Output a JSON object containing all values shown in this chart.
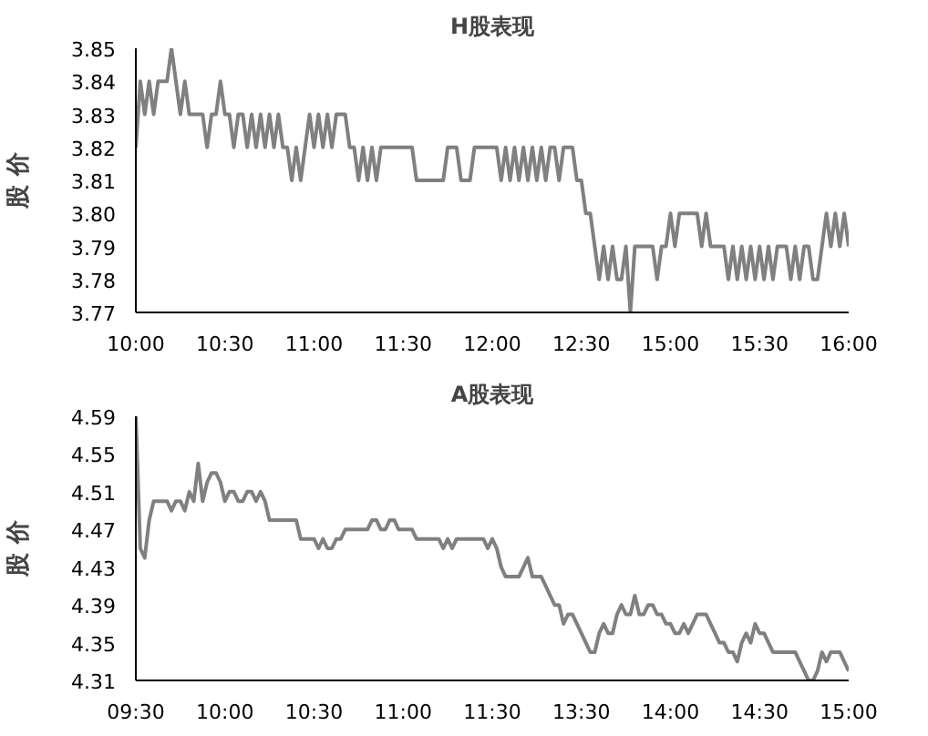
{
  "chart_data": [
    {
      "type": "line",
      "title": "H股表现",
      "ylabel": "股 价",
      "categories": [
        "10:00",
        null,
        null,
        null,
        null,
        null,
        null,
        null,
        null,
        null,
        null,
        null,
        null,
        null,
        null,
        null,
        null,
        null,
        null,
        null,
        "10:30",
        null,
        null,
        null,
        null,
        null,
        null,
        null,
        null,
        null,
        null,
        null,
        null,
        null,
        null,
        null,
        null,
        null,
        null,
        null,
        "11:00",
        null,
        null,
        null,
        null,
        null,
        null,
        null,
        null,
        null,
        null,
        null,
        null,
        null,
        null,
        null,
        null,
        null,
        null,
        null,
        "11:30",
        null,
        null,
        null,
        null,
        null,
        null,
        null,
        null,
        null,
        null,
        null,
        null,
        null,
        null,
        null,
        null,
        null,
        null,
        null,
        "12:00",
        null,
        null,
        null,
        null,
        null,
        null,
        null,
        null,
        null,
        null,
        null,
        null,
        null,
        null,
        null,
        null,
        null,
        null,
        null,
        "12:30",
        null,
        null,
        null,
        null,
        null,
        null,
        null,
        null,
        null,
        null,
        null,
        null,
        null,
        null,
        null,
        null,
        null,
        null,
        null,
        "15:00",
        null,
        null,
        null,
        null,
        null,
        null,
        null,
        null,
        null,
        null,
        null,
        null,
        null,
        null,
        null,
        null,
        null,
        null,
        null,
        "15:30",
        null,
        null,
        null,
        null,
        null,
        null,
        null,
        null,
        null,
        null,
        null,
        null,
        null,
        null,
        null,
        null,
        null,
        null,
        null,
        "16:00"
      ],
      "ylim": [
        3.77,
        3.85
      ],
      "yticks": [
        3.77,
        3.78,
        3.79,
        {
          "value": 3.8,
          "label": "3.80"
        },
        3.81,
        3.82,
        3.83,
        3.84,
        3.85
      ],
      "series": [
        {
          "color": "#808080",
          "values": [
            3.82,
            3.84,
            3.83,
            3.84,
            3.83,
            3.84,
            3.84,
            3.84,
            3.85,
            3.84,
            3.83,
            3.84,
            3.83,
            3.83,
            3.83,
            3.83,
            3.82,
            3.83,
            3.83,
            3.84,
            3.83,
            3.83,
            3.82,
            3.83,
            3.83,
            3.82,
            3.83,
            3.82,
            3.83,
            3.82,
            3.83,
            3.82,
            3.83,
            3.82,
            3.82,
            3.81,
            3.82,
            3.81,
            3.82,
            3.83,
            3.82,
            3.83,
            3.82,
            3.83,
            3.82,
            3.83,
            3.83,
            3.83,
            3.82,
            3.82,
            3.81,
            3.82,
            3.81,
            3.82,
            3.81,
            3.82,
            3.82,
            3.82,
            3.82,
            3.82,
            3.82,
            3.82,
            3.82,
            3.81,
            3.81,
            3.81,
            3.81,
            3.81,
            3.81,
            3.81,
            3.82,
            3.82,
            3.82,
            3.81,
            3.81,
            3.81,
            3.82,
            3.82,
            3.82,
            3.82,
            3.82,
            3.82,
            3.81,
            3.82,
            3.81,
            3.82,
            3.81,
            3.82,
            3.81,
            3.82,
            3.81,
            3.82,
            3.81,
            3.82,
            3.82,
            3.81,
            3.82,
            3.82,
            3.82,
            3.81,
            3.81,
            3.8,
            3.8,
            3.79,
            3.78,
            3.79,
            3.78,
            3.79,
            3.78,
            3.78,
            3.79,
            3.77,
            3.79,
            3.79,
            3.79,
            3.79,
            3.79,
            3.78,
            3.79,
            3.79,
            3.8,
            3.79,
            3.8,
            3.8,
            3.8,
            3.8,
            3.8,
            3.79,
            3.8,
            3.79,
            3.79,
            3.79,
            3.79,
            3.78,
            3.79,
            3.78,
            3.79,
            3.78,
            3.79,
            3.78,
            3.79,
            3.78,
            3.79,
            3.78,
            3.79,
            3.79,
            3.79,
            3.78,
            3.79,
            3.78,
            3.79,
            3.79,
            3.78,
            3.78,
            3.79,
            3.8,
            3.79,
            3.8,
            3.79,
            3.8,
            3.79
          ]
        }
      ]
    },
    {
      "type": "line",
      "title": "A股表现",
      "ylabel": "股 价",
      "categories": [
        "09:30",
        null,
        null,
        null,
        null,
        null,
        null,
        null,
        null,
        null,
        null,
        null,
        null,
        null,
        null,
        null,
        null,
        null,
        null,
        null,
        "10:00",
        null,
        null,
        null,
        null,
        null,
        null,
        null,
        null,
        null,
        null,
        null,
        null,
        null,
        null,
        null,
        null,
        null,
        null,
        null,
        "10:30",
        null,
        null,
        null,
        null,
        null,
        null,
        null,
        null,
        null,
        null,
        null,
        null,
        null,
        null,
        null,
        null,
        null,
        null,
        null,
        "11:00",
        null,
        null,
        null,
        null,
        null,
        null,
        null,
        null,
        null,
        null,
        null,
        null,
        null,
        null,
        null,
        null,
        null,
        null,
        null,
        "11:30",
        null,
        null,
        null,
        null,
        null,
        null,
        null,
        null,
        null,
        null,
        null,
        null,
        null,
        null,
        null,
        null,
        null,
        null,
        null,
        "13:30",
        null,
        null,
        null,
        null,
        null,
        null,
        null,
        null,
        null,
        null,
        null,
        null,
        null,
        null,
        null,
        null,
        null,
        null,
        null,
        "14:00",
        null,
        null,
        null,
        null,
        null,
        null,
        null,
        null,
        null,
        null,
        null,
        null,
        null,
        null,
        null,
        null,
        null,
        null,
        null,
        "14:30",
        null,
        null,
        null,
        null,
        null,
        null,
        null,
        null,
        null,
        null,
        null,
        null,
        null,
        null,
        null,
        null,
        null,
        null,
        null,
        "15:00"
      ],
      "ylim": [
        4.31,
        4.59
      ],
      "yticks": [
        4.31,
        4.35,
        4.39,
        4.43,
        4.47,
        4.51,
        4.55,
        4.59
      ],
      "series": [
        {
          "color": "#808080",
          "values": [
            4.59,
            4.45,
            4.44,
            4.48,
            4.5,
            4.5,
            4.5,
            4.5,
            4.49,
            4.5,
            4.5,
            4.49,
            4.51,
            4.5,
            4.54,
            4.5,
            4.52,
            4.53,
            4.53,
            4.52,
            4.5,
            4.51,
            4.51,
            4.5,
            4.5,
            4.51,
            4.51,
            4.5,
            4.51,
            4.5,
            4.48,
            4.48,
            4.48,
            4.48,
            4.48,
            4.48,
            4.48,
            4.46,
            4.46,
            4.46,
            4.46,
            4.45,
            4.46,
            4.45,
            4.45,
            4.46,
            4.46,
            4.47,
            4.47,
            4.47,
            4.47,
            4.47,
            4.47,
            4.48,
            4.48,
            4.47,
            4.47,
            4.48,
            4.48,
            4.47,
            4.47,
            4.47,
            4.47,
            4.46,
            4.46,
            4.46,
            4.46,
            4.46,
            4.46,
            4.45,
            4.46,
            4.45,
            4.46,
            4.46,
            4.46,
            4.46,
            4.46,
            4.46,
            4.46,
            4.45,
            4.46,
            4.45,
            4.43,
            4.42,
            4.42,
            4.42,
            4.42,
            4.43,
            4.44,
            4.42,
            4.42,
            4.42,
            4.41,
            4.4,
            4.39,
            4.39,
            4.37,
            4.38,
            4.38,
            4.37,
            4.36,
            4.35,
            4.34,
            4.34,
            4.36,
            4.37,
            4.36,
            4.36,
            4.38,
            4.39,
            4.38,
            4.38,
            4.4,
            4.38,
            4.38,
            4.39,
            4.39,
            4.38,
            4.38,
            4.37,
            4.37,
            4.36,
            4.36,
            4.37,
            4.36,
            4.37,
            4.38,
            4.38,
            4.38,
            4.37,
            4.36,
            4.35,
            4.35,
            4.34,
            4.34,
            4.33,
            4.35,
            4.36,
            4.35,
            4.37,
            4.36,
            4.36,
            4.35,
            4.34,
            4.34,
            4.34,
            4.34,
            4.34,
            4.34,
            4.33,
            4.32,
            4.31,
            4.31,
            4.32,
            4.34,
            4.33,
            4.34,
            4.34,
            4.34,
            4.33,
            4.32
          ]
        }
      ]
    }
  ]
}
